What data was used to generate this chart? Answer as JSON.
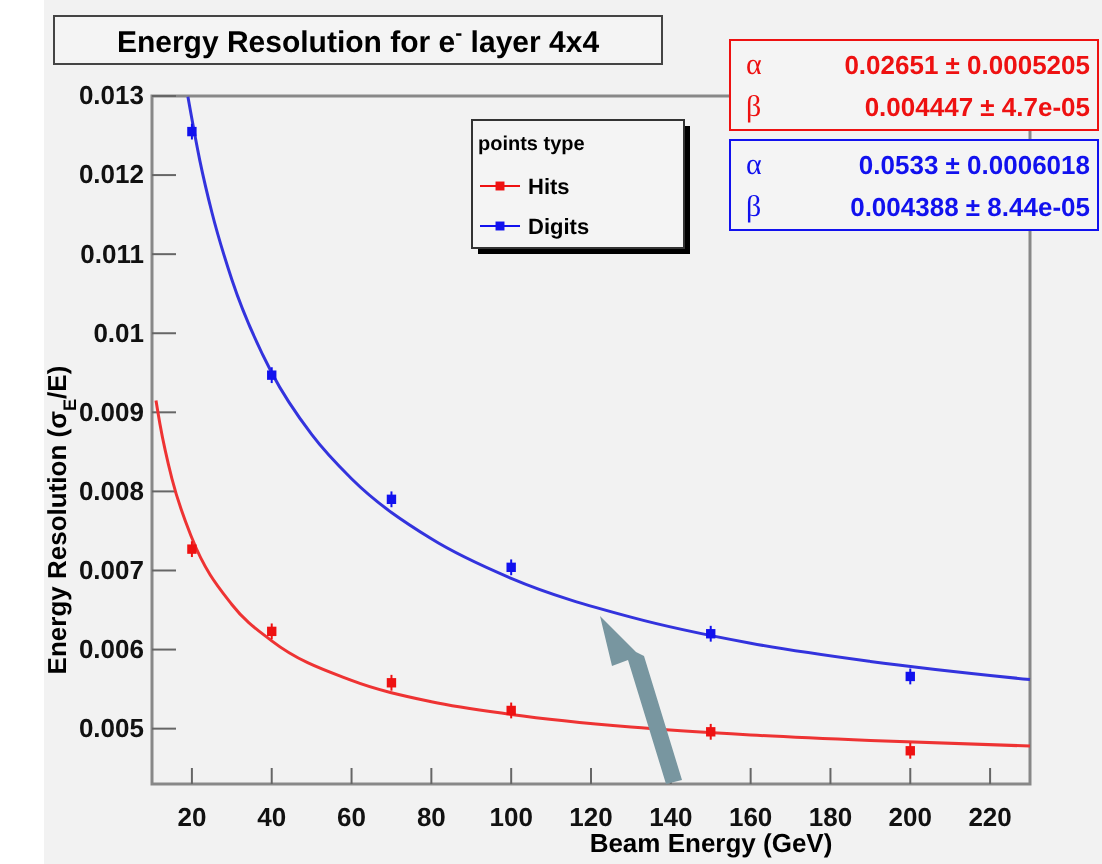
{
  "chart_data": {
    "type": "scatter",
    "title": "Energy Resolution for e$^{-}$ layer 4x4",
    "xlabel": "Beam Energy (GeV)",
    "ylabel": "Energy Resolution (σ$_{E}$/E)",
    "legend_title": "points type",
    "xlim": [
      10,
      230
    ],
    "xticks": [
      20,
      40,
      60,
      80,
      100,
      120,
      140,
      160,
      180,
      200,
      220
    ],
    "ylim": [
      0.0043,
      0.013
    ],
    "yticks": [
      0.005,
      0.006,
      0.007,
      0.008,
      0.009,
      0.01,
      0.011,
      0.012,
      0.013
    ],
    "grid": false,
    "legend": "top",
    "marker": "square",
    "annotations": [
      "α 0.02651 ± 0.0005205",
      "β 0.004447 ± 4.7e-05",
      "α 0.0533 ± 0.0006018",
      "β 0.004388 ± 8.44e-05"
    ],
    "series": [
      {
        "name": "Hits",
        "color": "#ee1111",
        "x": [
          20,
          40,
          70,
          100,
          150,
          200
        ],
        "values": [
          0.00727,
          0.00623,
          0.00558,
          0.00523,
          0.00496,
          0.00472
        ],
        "errors": [
          0.0001,
          0.0001,
          0.0001,
          0.0001,
          0.0001,
          0.0001
        ]
      },
      {
        "name": "Digits",
        "color": "#1111ee",
        "x": [
          20,
          40,
          70,
          100,
          150,
          200
        ],
        "values": [
          0.01255,
          0.00947,
          0.0079,
          0.00704,
          0.0062,
          0.00566
        ],
        "errors": [
          0.0001,
          0.0001,
          0.0001,
          0.0001,
          0.0001,
          0.0001
        ]
      },
      {
        "type": "line",
        "marker": "none",
        "color": "#ee3333",
        "x": [
          11,
          12,
          15,
          20,
          30,
          40,
          60,
          80,
          100,
          130,
          160,
          190,
          230
        ],
        "values": [
          0.00915,
          0.00885,
          0.00816,
          0.00741,
          0.00657,
          0.00611,
          0.00561,
          0.00534,
          0.00518,
          0.00502,
          0.00492,
          0.00485,
          0.00478
        ]
      },
      {
        "type": "line",
        "marker": "none",
        "color": "#3333dd",
        "x": [
          19,
          22,
          25,
          30,
          40,
          50,
          60,
          80,
          100,
          130,
          160,
          190,
          230
        ],
        "values": [
          0.01299,
          0.01218,
          0.01153,
          0.01068,
          0.0095,
          0.00872,
          0.00816,
          0.0074,
          0.0069,
          0.00641,
          0.00608,
          0.00585,
          0.00562
        ]
      }
    ]
  }
}
